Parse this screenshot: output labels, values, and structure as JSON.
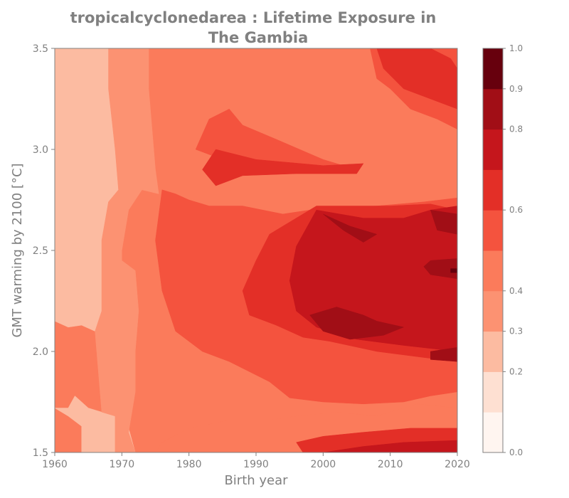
{
  "chart_data": {
    "type": "heatmap",
    "title_lines": [
      "tropicalcyclonedarea : Lifetime Exposure in",
      "The Gambia"
    ],
    "xlabel": "Birth year",
    "ylabel": "GMT warming by 2100 [°C]",
    "xlim": [
      1960,
      2020
    ],
    "ylim": [
      1.5,
      3.5
    ],
    "xticks": [
      1960,
      1970,
      1980,
      1990,
      2000,
      2010,
      2020
    ],
    "yticks": [
      "1.5",
      "2.0",
      "2.5",
      "3.0",
      "3.5"
    ],
    "colorbar": {
      "range": [
        0.0,
        1.0
      ],
      "levels": [
        0.0,
        0.1,
        0.2,
        0.3,
        0.4,
        0.5,
        0.6,
        0.7,
        0.8,
        0.9,
        1.0
      ],
      "tick_values": [
        0.0,
        0.2,
        0.3,
        0.4,
        0.6,
        0.8,
        0.9,
        1.0
      ],
      "tick_labels": [
        "0.0",
        "0.2",
        "0.3",
        "0.4",
        "0.6",
        "0.8",
        "0.9",
        "1.0"
      ],
      "colors": [
        "#fff5f0",
        "#fee0d2",
        "#fcbba1",
        "#fc9272",
        "#fb7b5b",
        "#f4533e",
        "#e32f27",
        "#c5161c",
        "#a10e16",
        "#67000d"
      ],
      "colormap": "Reds"
    },
    "grid": false,
    "regions": [
      {
        "level": 2,
        "color": "#fcbba1",
        "points": [
          [
            1960,
            3.5
          ],
          [
            1968,
            3.5
          ],
          [
            1968,
            3.3
          ],
          [
            1969,
            3.0
          ],
          [
            1969.5,
            2.8
          ],
          [
            1968,
            2.74
          ],
          [
            1967,
            2.55
          ],
          [
            1967,
            2.2
          ],
          [
            1966,
            2.1
          ],
          [
            1964,
            2.13
          ],
          [
            1962,
            2.12
          ],
          [
            1960,
            2.15
          ]
        ]
      },
      {
        "level": 2,
        "color": "#fcbba1",
        "points": [
          [
            1960,
            1.72
          ],
          [
            1962,
            1.72
          ],
          [
            1963,
            1.78
          ],
          [
            1965,
            1.72
          ],
          [
            1967,
            1.7
          ],
          [
            1968,
            1.72
          ],
          [
            1969,
            1.68
          ],
          [
            1971,
            1.62
          ],
          [
            1972,
            1.5
          ],
          [
            1964,
            1.5
          ],
          [
            1964,
            1.63
          ],
          [
            1962,
            1.68
          ],
          [
            1960,
            1.72
          ]
        ]
      },
      {
        "level": 3,
        "color": "#fc9272",
        "points": [
          [
            1968,
            3.5
          ],
          [
            1974,
            3.5
          ],
          [
            1974,
            3.3
          ],
          [
            1975,
            2.9
          ],
          [
            1975.5,
            2.78
          ],
          [
            1973,
            2.8
          ],
          [
            1971,
            2.7
          ],
          [
            1970,
            2.5
          ],
          [
            1970,
            2.45
          ],
          [
            1972,
            2.4
          ],
          [
            1972.5,
            2.2
          ],
          [
            1972,
            2.0
          ],
          [
            1972,
            1.8
          ],
          [
            1971,
            1.6
          ],
          [
            1972,
            1.5
          ],
          [
            1969,
            1.5
          ],
          [
            1969,
            1.68
          ],
          [
            1967,
            1.7
          ],
          [
            1966,
            2.1
          ],
          [
            1967,
            2.2
          ],
          [
            1967,
            2.55
          ],
          [
            1968,
            2.74
          ],
          [
            1969.5,
            2.8
          ],
          [
            1969,
            3.0
          ],
          [
            1968,
            3.3
          ]
        ]
      },
      {
        "level": 5,
        "color": "#f4533e",
        "points": [
          [
            1976,
            2.8
          ],
          [
            1978,
            2.78
          ],
          [
            1980,
            2.75
          ],
          [
            1983,
            2.72
          ],
          [
            1988,
            2.72
          ],
          [
            1994,
            2.68
          ],
          [
            1998,
            2.7
          ],
          [
            2008,
            2.72
          ],
          [
            2015,
            2.74
          ],
          [
            2020,
            2.76
          ],
          [
            2020,
            1.8
          ],
          [
            2016,
            1.78
          ],
          [
            2012,
            1.75
          ],
          [
            2006,
            1.74
          ],
          [
            2000,
            1.75
          ],
          [
            1995,
            1.77
          ],
          [
            1992,
            1.85
          ],
          [
            1989,
            1.9
          ],
          [
            1986,
            1.95
          ],
          [
            1982,
            2.0
          ],
          [
            1978,
            2.1
          ],
          [
            1976,
            2.3
          ],
          [
            1975,
            2.55
          ]
        ]
      },
      {
        "level": 5,
        "color": "#f4533e",
        "points": [
          [
            2007,
            3.5
          ],
          [
            2020,
            3.5
          ],
          [
            2020,
            3.1
          ],
          [
            2017,
            3.15
          ],
          [
            2013,
            3.2
          ],
          [
            2010,
            3.3
          ],
          [
            2008,
            3.35
          ]
        ]
      },
      {
        "level": 5,
        "color": "#f4533e",
        "points": [
          [
            1986,
            3.2
          ],
          [
            1983,
            3.15
          ],
          [
            1981,
            3.0
          ],
          [
            1985,
            2.95
          ],
          [
            1992,
            2.93
          ],
          [
            2001,
            2.9
          ],
          [
            2005,
            2.9
          ],
          [
            2000,
            2.95
          ],
          [
            1993,
            3.05
          ],
          [
            1988,
            3.12
          ]
        ]
      },
      {
        "level": 4,
        "color": "#fb7b5b",
        "points": [
          [
            1992,
            1.5
          ],
          [
            2010,
            1.5
          ],
          [
            2020,
            1.52
          ],
          [
            2020,
            1.72
          ],
          [
            2014,
            1.74
          ],
          [
            2008,
            1.68
          ],
          [
            2002,
            1.7
          ],
          [
            1996,
            1.68
          ],
          [
            1992,
            1.66
          ],
          [
            1986,
            1.66
          ],
          [
            1980,
            1.62
          ],
          [
            1976,
            1.55
          ],
          [
            1975,
            1.5
          ]
        ]
      },
      {
        "level": 6,
        "color": "#e32f27",
        "points": [
          [
            2008,
            3.5
          ],
          [
            2016,
            3.5
          ],
          [
            2019,
            3.45
          ],
          [
            2020,
            3.4
          ],
          [
            2020,
            3.2
          ],
          [
            2016,
            3.25
          ],
          [
            2012,
            3.3
          ],
          [
            2009,
            3.4
          ]
        ]
      },
      {
        "level": 6,
        "color": "#e32f27",
        "points": [
          [
            1984,
            3.0
          ],
          [
            1990,
            2.95
          ],
          [
            2000,
            2.92
          ],
          [
            2006,
            2.93
          ],
          [
            2005,
            2.88
          ],
          [
            1996,
            2.88
          ],
          [
            1988,
            2.87
          ],
          [
            1984,
            2.82
          ],
          [
            1982,
            2.9
          ]
        ]
      },
      {
        "level": 6,
        "color": "#e32f27",
        "points": [
          [
            1994,
            2.62
          ],
          [
            1999,
            2.72
          ],
          [
            2010,
            2.72
          ],
          [
            2016,
            2.73
          ],
          [
            2020,
            2.7
          ],
          [
            2020,
            1.95
          ],
          [
            2015,
            1.97
          ],
          [
            2008,
            2.0
          ],
          [
            2001,
            2.05
          ],
          [
            1997,
            2.07
          ],
          [
            1993,
            2.13
          ],
          [
            1989,
            2.18
          ],
          [
            1988,
            2.3
          ],
          [
            1990,
            2.45
          ],
          [
            1992,
            2.58
          ]
        ]
      },
      {
        "level": 6,
        "color": "#e32f27",
        "points": [
          [
            1997,
            1.5
          ],
          [
            2020,
            1.5
          ],
          [
            2020,
            1.62
          ],
          [
            2013,
            1.62
          ],
          [
            2006,
            1.6
          ],
          [
            2000,
            1.58
          ],
          [
            1996,
            1.55
          ]
        ]
      },
      {
        "level": 7,
        "color": "#c5161c",
        "points": [
          [
            1999,
            2.7
          ],
          [
            2006,
            2.66
          ],
          [
            2012,
            2.66
          ],
          [
            2016,
            2.7
          ],
          [
            2020,
            2.72
          ],
          [
            2020,
            2.0
          ],
          [
            2012,
            2.03
          ],
          [
            2005,
            2.06
          ],
          [
            1999,
            2.12
          ],
          [
            1996,
            2.2
          ],
          [
            1995,
            2.35
          ],
          [
            1996,
            2.52
          ]
        ]
      },
      {
        "level": 7,
        "color": "#c5161c",
        "points": [
          [
            2000,
            1.5
          ],
          [
            2020,
            1.5
          ],
          [
            2020,
            1.56
          ],
          [
            2012,
            1.55
          ],
          [
            2006,
            1.53
          ]
        ]
      },
      {
        "level": 8,
        "color": "#a10e16",
        "points": [
          [
            2000,
            2.68
          ],
          [
            2004,
            2.62
          ],
          [
            2008,
            2.58
          ],
          [
            2006,
            2.54
          ],
          [
            2003,
            2.6
          ]
        ]
      },
      {
        "level": 8,
        "color": "#a10e16",
        "points": [
          [
            2016,
            2.7
          ],
          [
            2020,
            2.68
          ],
          [
            2020,
            2.58
          ],
          [
            2017,
            2.6
          ]
        ]
      },
      {
        "level": 8,
        "color": "#a10e16",
        "points": [
          [
            2002,
            2.22
          ],
          [
            2006,
            2.18
          ],
          [
            2008,
            2.15
          ],
          [
            2012,
            2.12
          ],
          [
            2009,
            2.08
          ],
          [
            2004,
            2.06
          ],
          [
            2000,
            2.1
          ],
          [
            1998,
            2.18
          ]
        ]
      },
      {
        "level": 8,
        "color": "#a10e16",
        "points": [
          [
            2016,
            2.45
          ],
          [
            2020,
            2.46
          ],
          [
            2020,
            2.36
          ],
          [
            2016,
            2.38
          ],
          [
            2015,
            2.42
          ]
        ]
      },
      {
        "level": 8,
        "color": "#a10e16",
        "points": [
          [
            2016,
            2.0
          ],
          [
            2020,
            2.02
          ],
          [
            2020,
            1.95
          ],
          [
            2016,
            1.96
          ]
        ]
      },
      {
        "level": 9,
        "color": "#67000d",
        "points": [
          [
            2019,
            2.41
          ],
          [
            2020,
            2.41
          ],
          [
            2020,
            2.39
          ],
          [
            2019,
            2.39
          ]
        ]
      }
    ]
  }
}
